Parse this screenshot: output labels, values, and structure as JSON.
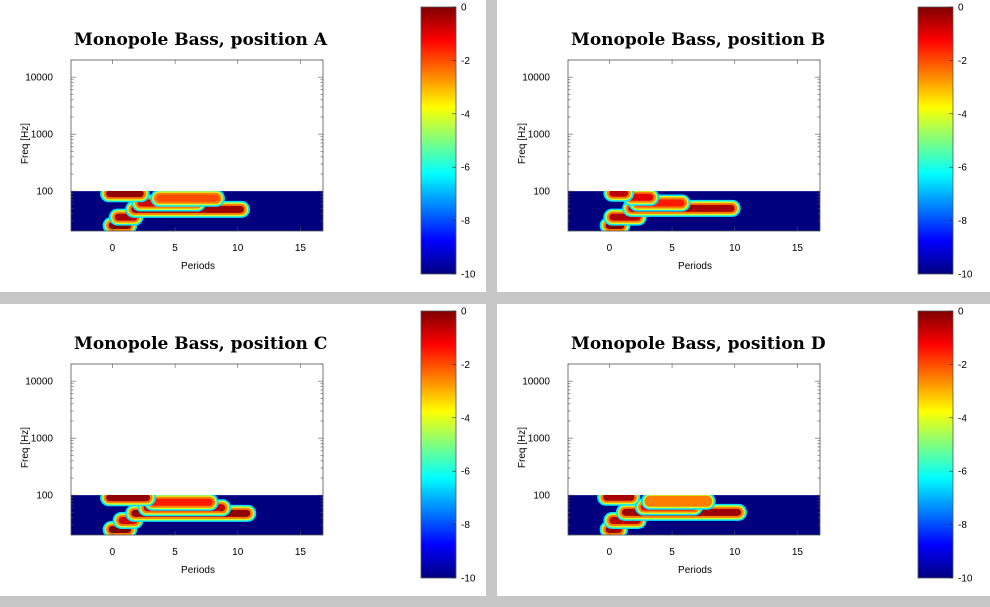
{
  "colors": {
    "background": "#c6c6c6",
    "panel": "#ffffff",
    "colormap": [
      "#00007f",
      "#0000ff",
      "#007fff",
      "#00ffff",
      "#7fff7f",
      "#ffff00",
      "#ff7f00",
      "#ff0000",
      "#7f0000"
    ]
  },
  "chart_data": [
    {
      "type": "heatmap",
      "title": "Monopole Bass, position A",
      "xlabel": "Periods",
      "ylabel": "Freq [Hz]",
      "x_ticks": [
        "0",
        "5",
        "10",
        "15"
      ],
      "y_ticks": [
        "100",
        "1000",
        "10000"
      ],
      "xlim": [
        -3.3,
        16.8
      ],
      "ylim": [
        20,
        20000
      ],
      "y_scale": "log",
      "data_ylim": [
        20,
        100
      ],
      "colorbar": {
        "ticks": [
          "0",
          "-2",
          "-4",
          "-6",
          "-8",
          "-10"
        ],
        "range": [
          -10,
          0
        ]
      },
      "ridges": [
        {
          "freq": 25,
          "start": -0.3,
          "end": 1.5,
          "level": 0
        },
        {
          "freq": 35,
          "start": 0.2,
          "end": 2.0,
          "level": -0.4
        },
        {
          "freq": 48,
          "start": 1.5,
          "end": 10.5,
          "level": -0.3
        },
        {
          "freq": 62,
          "start": 2.0,
          "end": 7.0,
          "level": -0.8
        },
        {
          "freq": 75,
          "start": 3.5,
          "end": 8.5,
          "level": -2.0
        },
        {
          "freq": 90,
          "start": -0.5,
          "end": 2.5,
          "level": -0.2
        }
      ]
    },
    {
      "type": "heatmap",
      "title": "Monopole Bass, position B",
      "xlabel": "Periods",
      "ylabel": "Freq [Hz]",
      "x_ticks": [
        "0",
        "5",
        "10",
        "15"
      ],
      "y_ticks": [
        "100",
        "1000",
        "10000"
      ],
      "xlim": [
        -3.3,
        16.8
      ],
      "ylim": [
        20,
        20000
      ],
      "y_scale": "log",
      "data_ylim": [
        20,
        100
      ],
      "colorbar": {
        "ticks": [
          "0",
          "-2",
          "-4",
          "-6",
          "-8",
          "-10"
        ],
        "range": [
          -10,
          0
        ]
      },
      "ridges": [
        {
          "freq": 25,
          "start": -0.3,
          "end": 1.2,
          "level": 0
        },
        {
          "freq": 35,
          "start": 0.0,
          "end": 2.5,
          "level": -0.5
        },
        {
          "freq": 50,
          "start": 1.5,
          "end": 10.0,
          "level": -0.4
        },
        {
          "freq": 62,
          "start": 2.0,
          "end": 6.0,
          "level": -1.5
        },
        {
          "freq": 78,
          "start": 1.5,
          "end": 3.5,
          "level": -1.0
        },
        {
          "freq": 92,
          "start": 0.0,
          "end": 1.5,
          "level": -0.6
        }
      ]
    },
    {
      "type": "heatmap",
      "title": "Monopole Bass, position C",
      "xlabel": "Periods",
      "ylabel": "Freq [Hz]",
      "x_ticks": [
        "0",
        "5",
        "10",
        "15"
      ],
      "y_ticks": [
        "100",
        "1000",
        "10000"
      ],
      "xlim": [
        -3.3,
        16.8
      ],
      "ylim": [
        20,
        20000
      ],
      "y_scale": "log",
      "data_ylim": [
        20,
        100
      ],
      "colorbar": {
        "ticks": [
          "0",
          "-2",
          "-4",
          "-6",
          "-8",
          "-10"
        ],
        "range": [
          -10,
          0
        ]
      },
      "ridges": [
        {
          "freq": 25,
          "start": -0.3,
          "end": 1.5,
          "level": 0
        },
        {
          "freq": 36,
          "start": 0.5,
          "end": 2.0,
          "level": -0.8
        },
        {
          "freq": 48,
          "start": 1.5,
          "end": 11.0,
          "level": -0.2
        },
        {
          "freq": 60,
          "start": 2.5,
          "end": 9.0,
          "level": -0.6
        },
        {
          "freq": 75,
          "start": 3.0,
          "end": 8.0,
          "level": -1.5
        },
        {
          "freq": 90,
          "start": -0.5,
          "end": 3.0,
          "level": -0.2
        }
      ]
    },
    {
      "type": "heatmap",
      "title": "Monopole Bass, position D",
      "xlabel": "Periods",
      "ylabel": "Freq [Hz]",
      "x_ticks": [
        "0",
        "5",
        "10",
        "15"
      ],
      "y_ticks": [
        "100",
        "1000",
        "10000"
      ],
      "xlim": [
        -3.3,
        16.8
      ],
      "ylim": [
        20,
        20000
      ],
      "y_scale": "log",
      "data_ylim": [
        20,
        100
      ],
      "colorbar": {
        "ticks": [
          "0",
          "-2",
          "-4",
          "-6",
          "-8",
          "-10"
        ],
        "range": [
          -10,
          0
        ]
      },
      "ridges": [
        {
          "freq": 25,
          "start": -0.3,
          "end": 1.0,
          "level": -0.3
        },
        {
          "freq": 36,
          "start": 0.0,
          "end": 2.5,
          "level": -0.6
        },
        {
          "freq": 50,
          "start": 1.0,
          "end": 10.5,
          "level": -0.3
        },
        {
          "freq": 62,
          "start": 2.5,
          "end": 7.0,
          "level": -1.0
        },
        {
          "freq": 78,
          "start": 3.0,
          "end": 8.0,
          "level": -2.5
        },
        {
          "freq": 92,
          "start": -0.5,
          "end": 2.0,
          "level": -0.4
        }
      ]
    }
  ]
}
